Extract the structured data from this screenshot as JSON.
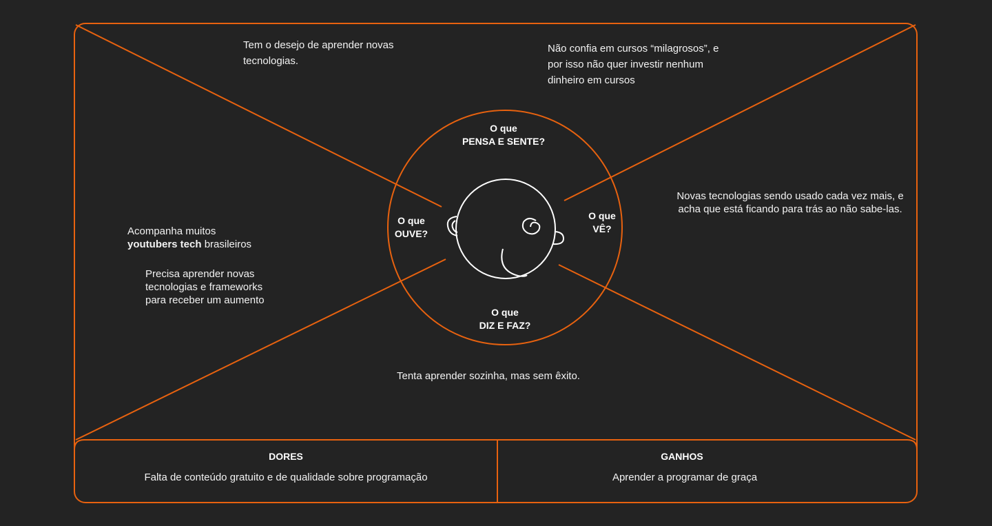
{
  "colors": {
    "background": "#232323",
    "accent": "#e8620f",
    "text": "#f2f2f2",
    "head_stroke": "#ffffff"
  },
  "icons": {
    "head": "head-outline-icon"
  },
  "quadrants": {
    "think_feel": {
      "line1": "O que",
      "line2": "PENSA E SENTE?",
      "note": "Tem o desejo de aprender novas tecnologias."
    },
    "see": {
      "line1": "O que",
      "line2": "VÊ?",
      "note": "Novas tecnologias sendo usado cada vez mais, e acha que está ficando para trás ao não sabe-las."
    },
    "hear": {
      "line1": "O que",
      "line2": "OUVE?",
      "note_line1": "Acompanha muitos",
      "note_bold": "youtubers tech",
      "note_rest": " brasileiros",
      "note2": "Precisa aprender novas tecnologias e frameworks para receber um aumento"
    },
    "say_do": {
      "line1": "O que",
      "line2": "DIZ E FAZ?",
      "note": "Tenta aprender sozinha, mas sem êxito."
    },
    "extra_note": "Não confia em cursos “milagrosos”, e por isso não quer investir nenhum dinheiro em cursos"
  },
  "panels": {
    "pains": {
      "title": "DORES",
      "text": "Falta de conteúdo gratuito e de qualidade sobre programação"
    },
    "gains": {
      "title": "GANHOS",
      "text": "Aprender a programar de graça"
    }
  }
}
